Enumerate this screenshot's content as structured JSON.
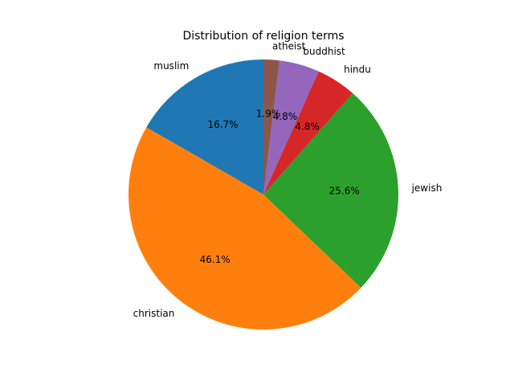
{
  "chart_data": {
    "type": "pie",
    "title": "Distribution of religion terms",
    "labels": [
      "muslim",
      "christian",
      "jewish",
      "hindu",
      "buddhist",
      "atheist"
    ],
    "values": [
      16.7,
      46.1,
      25.6,
      4.8,
      4.8,
      1.9
    ],
    "percent_labels": [
      "16.7%",
      "46.1%",
      "25.6%",
      "4.8%",
      "4.8%",
      "1.9%"
    ],
    "colors": [
      "#1f77b4",
      "#ff7f0e",
      "#2ca02c",
      "#d62728",
      "#9467bd",
      "#8c564b"
    ],
    "start_angle_deg": 90,
    "direction": "counterclockwise"
  }
}
